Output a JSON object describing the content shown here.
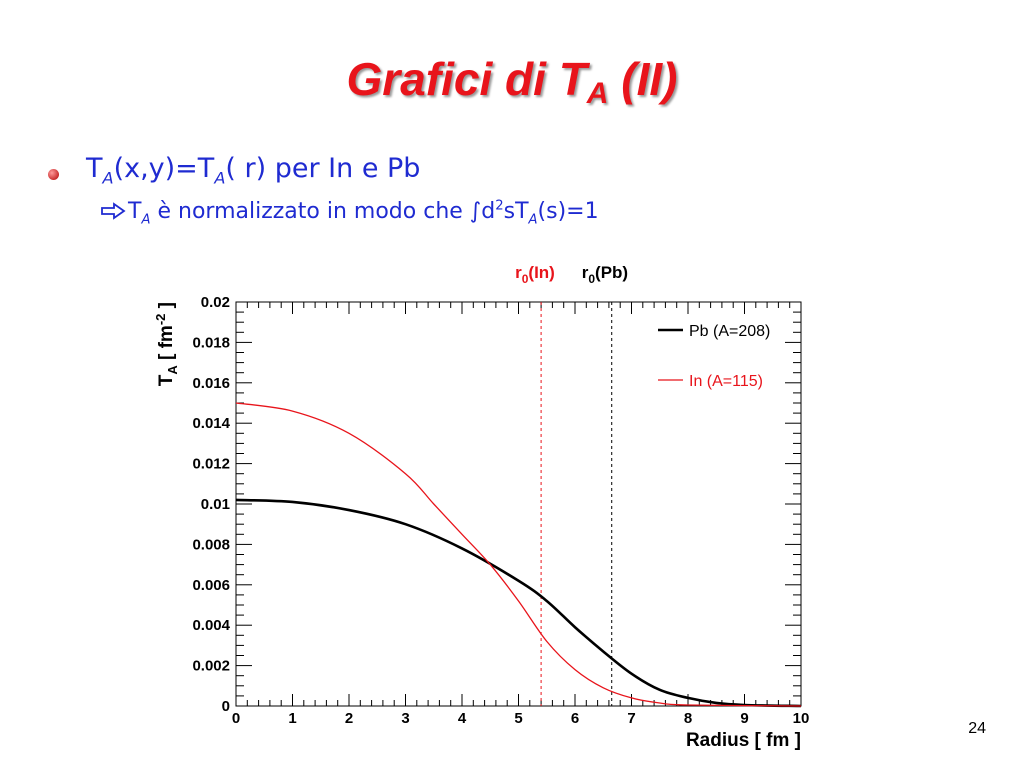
{
  "slide": {
    "title_main": "Grafici di T",
    "title_sub": "A",
    "title_tail": " (II)",
    "bullet1_a": "T",
    "bullet1_a_sub": "A",
    "bullet1_b": "(x,y)=T",
    "bullet1_b_sub": "A",
    "bullet1_c": "( r) per In e Pb",
    "bullet2_a": "T",
    "bullet2_a_sub": "A",
    "bullet2_b": " è normalizzato in modo che ∫d",
    "bullet2_b_sup": "2",
    "bullet2_c": "sT",
    "bullet2_c_sub": "A",
    "bullet2_d": "(s)=1",
    "page_number": "24"
  },
  "colors": {
    "title": "#e8141b",
    "text": "#1f2bd1",
    "pb": "#000000",
    "in": "#e8141b"
  },
  "chart_data": {
    "type": "line",
    "xlabel": "Radius [ fm ]",
    "ylabel": "T_A [ fm^-2 ]",
    "xlim": [
      0,
      10
    ],
    "ylim": [
      0,
      0.02
    ],
    "x_ticks": [
      "0",
      "1",
      "2",
      "3",
      "4",
      "5",
      "6",
      "7",
      "8",
      "9",
      "10"
    ],
    "y_ticks": [
      "0",
      "0.002",
      "0.004",
      "0.006",
      "0.008",
      "0.01",
      "0.012",
      "0.014",
      "0.016",
      "0.018",
      "0.02"
    ],
    "grid": false,
    "legend_position": "top-right",
    "series": [
      {
        "name": "Pb (A=208)",
        "color": "#000000",
        "x": [
          0,
          1,
          2,
          3,
          4,
          5,
          5.5,
          6,
          6.5,
          7,
          7.5,
          8,
          8.5,
          9,
          10
        ],
        "y": [
          0.0102,
          0.0101,
          0.0097,
          0.009,
          0.0078,
          0.0062,
          0.0052,
          0.0039,
          0.0027,
          0.0016,
          0.0008,
          0.0004,
          0.00015,
          5e-05,
          0
        ]
      },
      {
        "name": "In (A=115)",
        "color": "#e8141b",
        "x": [
          0,
          1,
          2,
          3,
          3.5,
          4,
          4.5,
          5,
          5.5,
          6,
          6.5,
          7,
          7.5,
          8,
          10
        ],
        "y": [
          0.015,
          0.0146,
          0.0135,
          0.0115,
          0.01,
          0.0085,
          0.007,
          0.0052,
          0.0032,
          0.0018,
          0.0009,
          0.0004,
          0.00015,
          5e-05,
          0
        ]
      }
    ],
    "vlines": [
      {
        "label": "r",
        "label_sub": "0",
        "label_tail": "(In)",
        "x": 5.4,
        "color": "#e8141b"
      },
      {
        "label": "r",
        "label_sub": "0",
        "label_tail": "(Pb)",
        "x": 6.65,
        "color": "#000000"
      }
    ]
  }
}
